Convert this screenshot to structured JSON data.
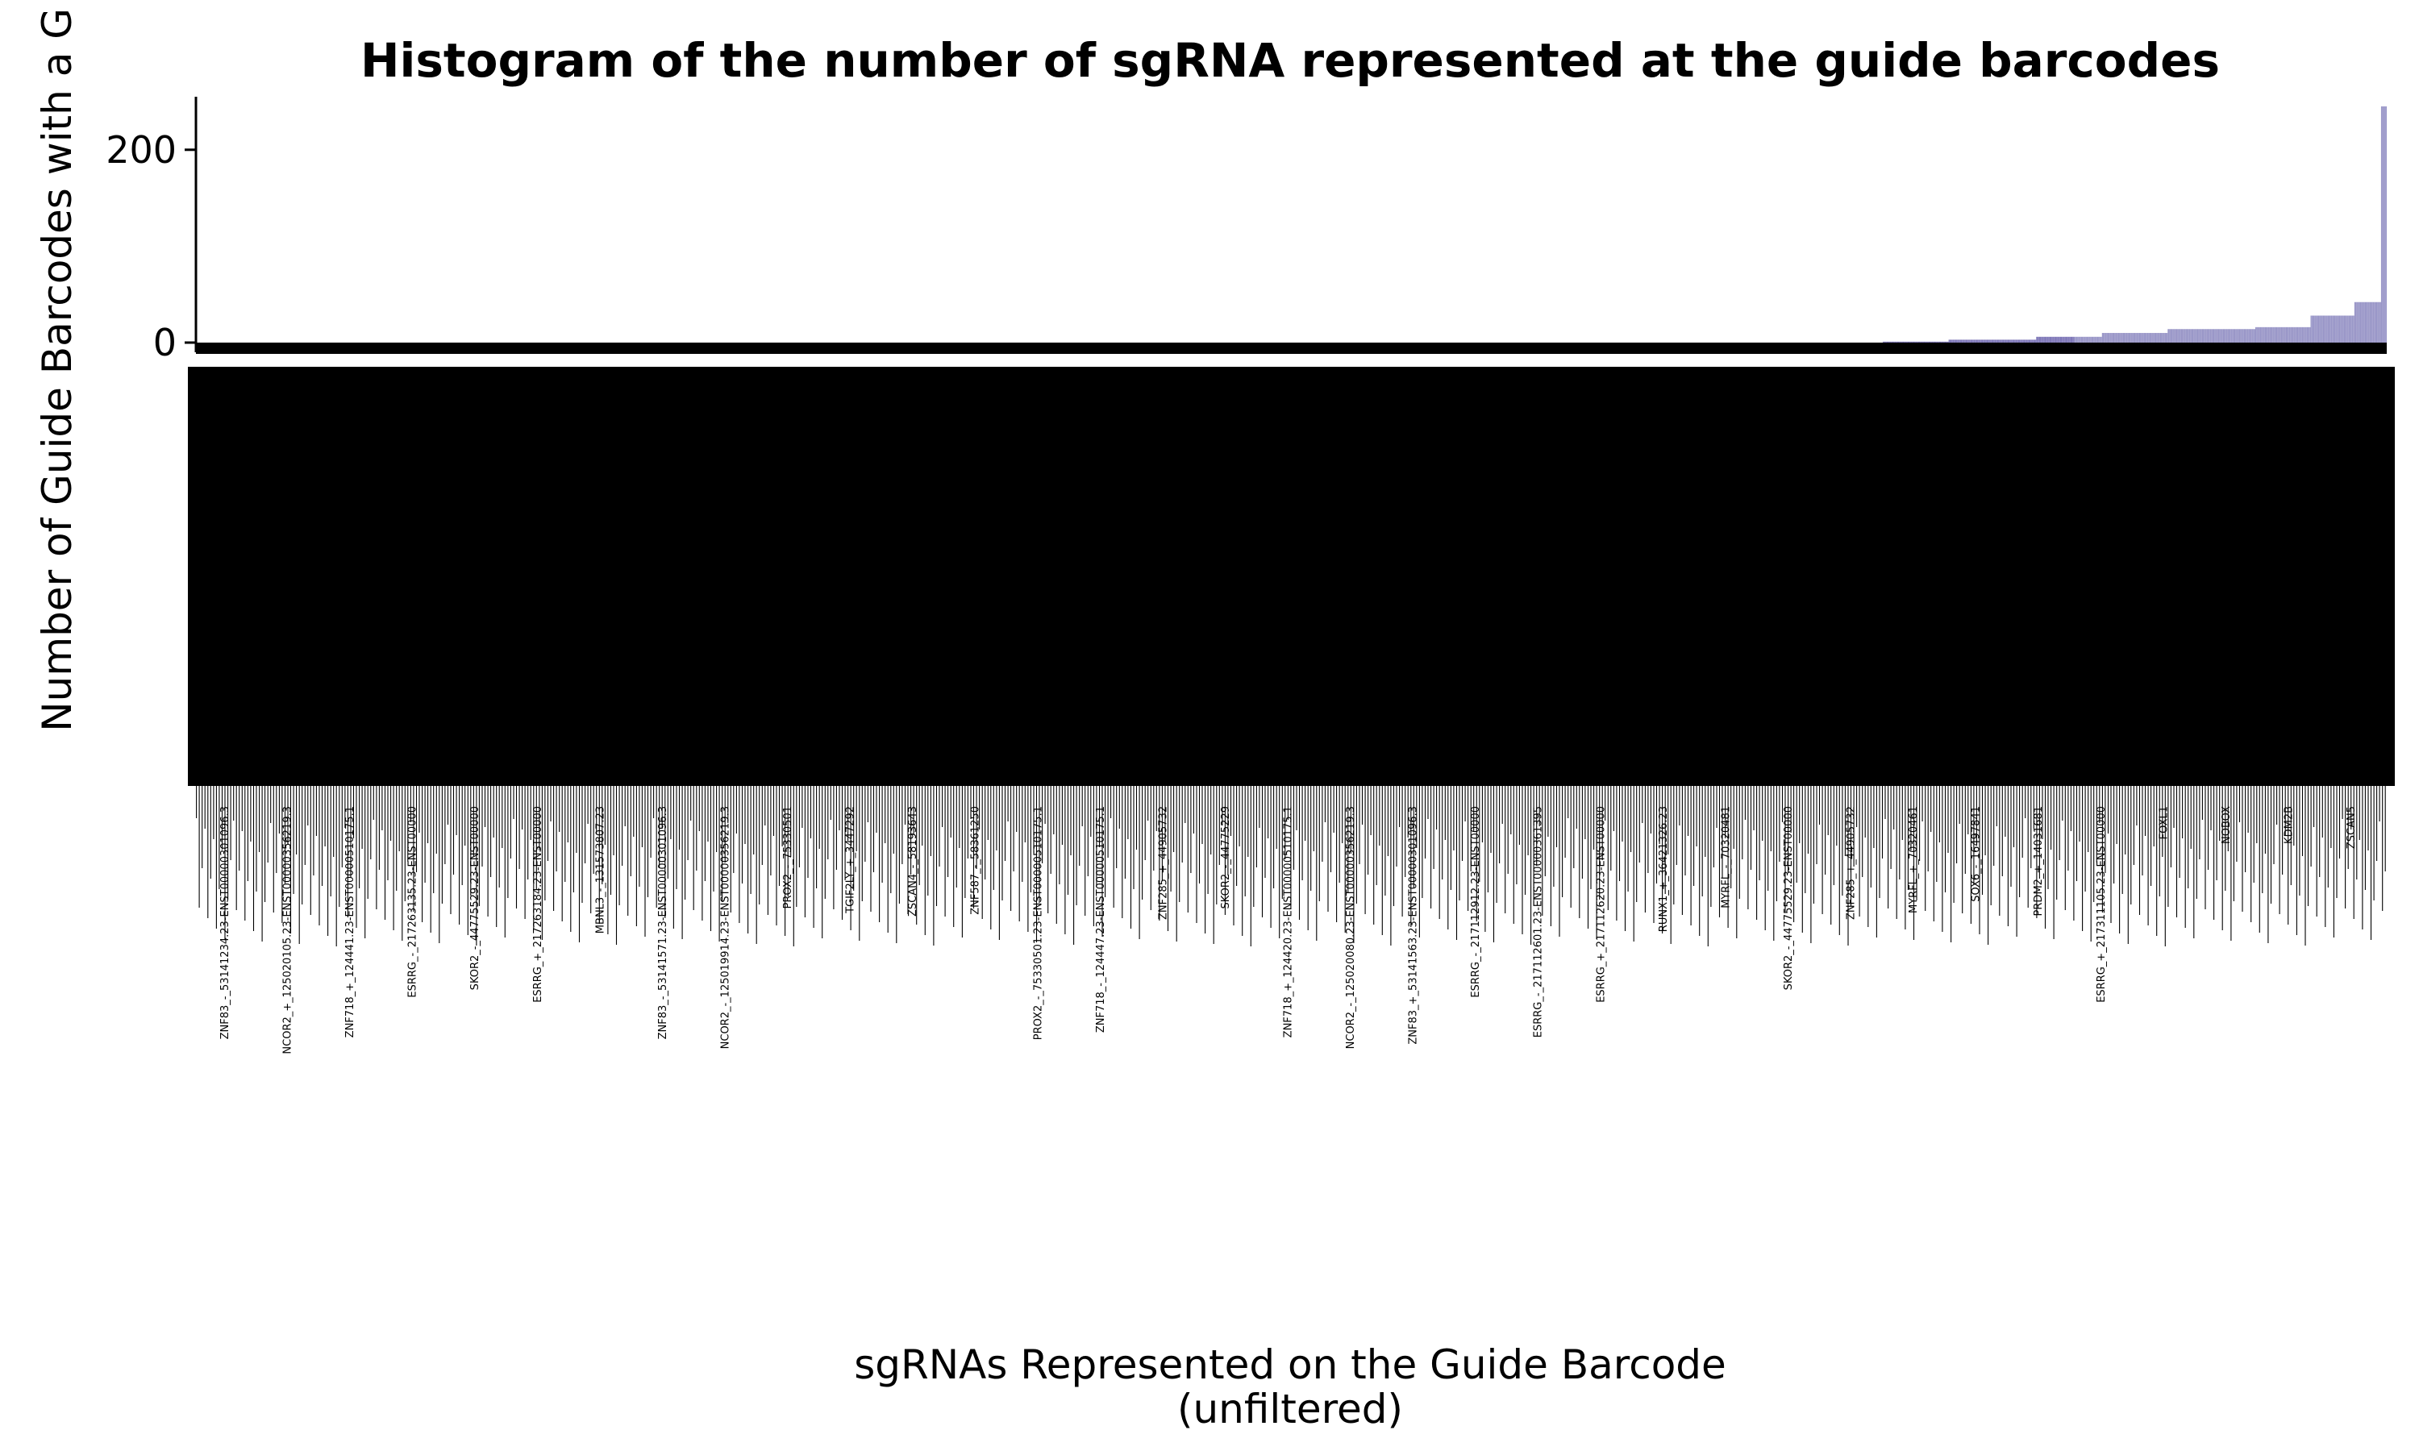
{
  "chart_data": {
    "type": "bar",
    "title": "Histogram of the number of sgRNA represented at the guide barcodes",
    "xlabel": "sgRNAs Represented on the Guide Barcode",
    "xlabel_note": "(unfiltered)",
    "ylabel": "Number of Guide Barcodes with a G",
    "ylim": [
      0,
      255
    ],
    "yticks": [
      0,
      200
    ],
    "grid": false,
    "legend": "none",
    "n_categories": 2300,
    "palette": [
      "#2f6f8e",
      "#3d82a8",
      "#4a6f9e",
      "#5a5a98",
      "#6a5fa8",
      "#7f78b8",
      "#9a97c8"
    ],
    "value_profile": [
      {
        "rank_from": 0.0,
        "rank_to": 0.77,
        "value": 0
      },
      {
        "rank_from": 0.77,
        "rank_to": 0.8,
        "value": 1
      },
      {
        "rank_from": 0.8,
        "rank_to": 0.84,
        "value": 3
      },
      {
        "rank_from": 0.84,
        "rank_to": 0.87,
        "value": 6
      },
      {
        "rank_from": 0.87,
        "rank_to": 0.9,
        "value": 10
      },
      {
        "rank_from": 0.9,
        "rank_to": 0.94,
        "value": 14
      },
      {
        "rank_from": 0.94,
        "rank_to": 0.965,
        "value": 16
      },
      {
        "rank_from": 0.965,
        "rank_to": 0.985,
        "value": 28
      },
      {
        "rank_from": 0.985,
        "rank_to": 0.997,
        "value": 42
      },
      {
        "rank_from": 0.997,
        "rank_to": 1.0,
        "value": 245
      }
    ],
    "visible_category_labels": [
      "ZNF83_-_53141234.23-ENST00000301096.3",
      "NCOR2_+_125020105.23-ENST00000356219.3",
      "ZNF718_+_124441.23-ENST00000510175.1",
      "ESRRG_-_217263135.23-ENST00000",
      "SKOR2_-_44775529.23-ENST00000",
      "ESRRG_+_217263184.23-ENST00000",
      "MBNL3_-_131573807.23",
      "ZNF83_-_53141571.23-ENST00000301096.3",
      "NCOR2_-_125019914.23-ENST00000356219.3",
      "PROX2_-_75330501",
      "TGIF2LY_+_3447292",
      "ZSCAN4_-_58193643",
      "ZNF587_-_58361250",
      "PROX2_-_75330501.23-ENST00000510175.1",
      "ZNF718_-_124447.23-ENST00000510175.1",
      "ZNF285_+_44905732",
      "SKOR2_-_44775229",
      "ZNF718_+_124420.23-ENST00000510175.1",
      "NCOR2_-_125020080.23-ENST00000356219.3",
      "ZNF83_+_53141563.23-ENST00000301096.3",
      "ESRRG_-_217112912.23-ENST00000",
      "ESRRG_-_217112601.23-ENST00000361395",
      "ESRRG_+_217112620.23-ENST00000",
      "RUNX1_+_36421326.23",
      "MYRFL_-_70320481",
      "SKOR2_-_44775529.23-ENST00000",
      "ZNF285_+_44905732",
      "MYRFL_+_70320461",
      "SOX6_-_16497841",
      "PRDM2_+_14031681",
      "ESRRG_+_217311105.23-ENST00000",
      "FOXL1",
      "NOBOX",
      "KDM2B",
      "ZSCAN5"
    ]
  }
}
